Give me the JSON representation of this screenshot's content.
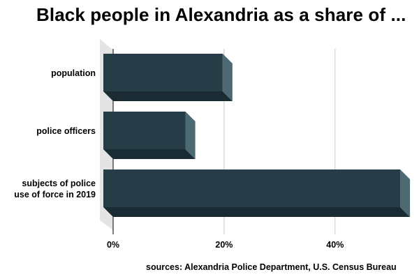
{
  "chart_data": {
    "type": "bar",
    "orientation": "horizontal",
    "title": "Black people in Alexandria as a share of ...",
    "categories": [
      [
        "population"
      ],
      [
        "police officers"
      ],
      [
        "subjects of police",
        "use of force in 2019"
      ]
    ],
    "values": [
      21.5,
      14.8,
      53.5
    ],
    "xlim": [
      0,
      55
    ],
    "xticks": [
      0,
      20,
      40
    ],
    "xtick_labels": [
      "0%",
      "20%",
      "40%"
    ],
    "grid": true,
    "bar_color": "#263c46",
    "bar_side_color": "#4d6a73",
    "bar_shadow_color": "#1b2b33",
    "wall_color": "#e4e4e4",
    "grid_color": "#c8c8c8",
    "source": "sources: Alexandria Police Department, U.S. Census Bureau"
  }
}
